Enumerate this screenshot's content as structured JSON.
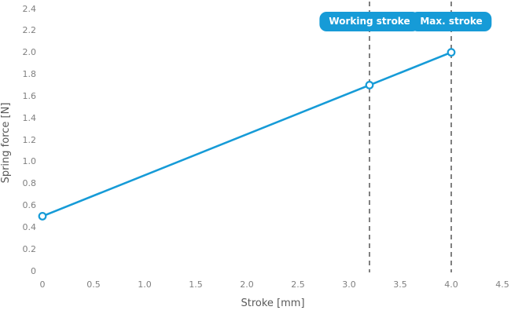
{
  "chart_data": {
    "type": "line",
    "title": "",
    "xlabel": "Stroke [mm]",
    "ylabel": "Spring force [N]",
    "xlim": [
      0,
      4.5
    ],
    "ylim": [
      0,
      2.4
    ],
    "grid": false,
    "axis_lines": false,
    "x_ticks": {
      "values": [
        0,
        0.5,
        1.0,
        1.5,
        2.0,
        2.5,
        3.0,
        3.5,
        4.0,
        4.5
      ],
      "labels": [
        "0",
        "0.5",
        "1.0",
        "1.5",
        "2.0",
        "2.5",
        "3.0",
        "3.5",
        "4.0",
        "4.5"
      ]
    },
    "y_ticks": {
      "values": [
        0,
        0.2,
        0.4,
        0.6,
        0.8,
        1.0,
        1.2,
        1.4,
        1.6,
        1.8,
        2.0,
        2.2,
        2.4
      ],
      "labels": [
        "0",
        "0.2",
        "0.4",
        "0.6",
        "0.8",
        "1.0",
        "1.2",
        "1.4",
        "1.6",
        "1.8",
        "2.0",
        "2.2",
        "2.4"
      ]
    },
    "series": [
      {
        "name": "spring-force",
        "x": [
          0,
          3.2,
          4.0
        ],
        "y": [
          0.5,
          1.7,
          2.0
        ],
        "marker": "open-circle"
      }
    ],
    "annotations": [
      {
        "id": "working-stroke",
        "label": "Working stroke",
        "x": 3.2
      },
      {
        "id": "max-stroke",
        "label": "Max. stroke",
        "x": 4.0
      }
    ]
  },
  "colors": {
    "accent_blue": "#169bd7",
    "badge_text": "#ffffff",
    "tick_text": "#7f7f7f",
    "axis_label_text": "#595959",
    "dash_line": "#808080",
    "marker_fill": "#ffffff",
    "background": "#ffffff"
  }
}
